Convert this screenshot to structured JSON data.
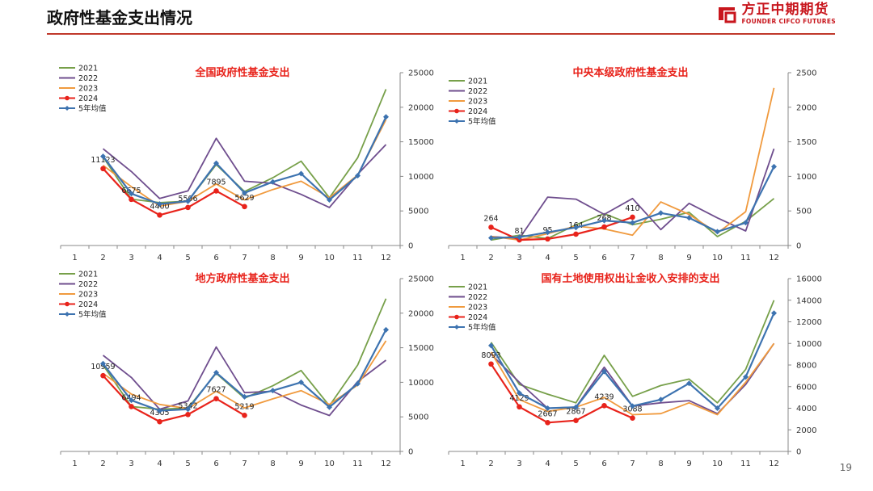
{
  "header": {
    "title": "政府性基金支出情况",
    "brand_cn": "方正中期期货",
    "brand_en": "FOUNDER CIFCO FUTURES",
    "brand_color": "#c8161d"
  },
  "page_number": "19",
  "series_colors": {
    "2021": "#77a04a",
    "2022": "#6f4e8e",
    "2023": "#f09a3e",
    "2024": "#e8231b",
    "5年均值": "#3d73b0"
  },
  "chart_data": [
    {
      "type": "line",
      "title": "全国政府性基金支出",
      "categories": [
        "1",
        "2",
        "3",
        "4",
        "5",
        "6",
        "7",
        "8",
        "9",
        "10",
        "11",
        "12"
      ],
      "ylim": [
        0,
        25000
      ],
      "yticks": [
        "0",
        "5000",
        "10000",
        "15000",
        "20000",
        "25000"
      ],
      "legend_position": "top-left",
      "grid": false,
      "series": [
        {
          "name": "2021",
          "values": [
            null,
            12800,
            6700,
            6200,
            6400,
            11700,
            7800,
            9800,
            12200,
            6900,
            12700,
            22600
          ]
        },
        {
          "name": "2022",
          "values": [
            null,
            14000,
            10700,
            6800,
            7900,
            15500,
            9300,
            9000,
            7400,
            5500,
            10300,
            14600
          ]
        },
        {
          "name": "2023",
          "values": [
            null,
            11600,
            8500,
            5700,
            6400,
            8900,
            6600,
            8100,
            9300,
            6900,
            10200,
            18200
          ]
        },
        {
          "name": "2024",
          "values": [
            null,
            11123,
            6675,
            4400,
            5506,
            7895,
            5629,
            null,
            null,
            null,
            null,
            null
          ],
          "labels": [
            "",
            "11123",
            "6675",
            "4400",
            "5506",
            "7895",
            "5629",
            "",
            "",
            "",
            "",
            ""
          ]
        },
        {
          "name": "5年均值",
          "values": [
            null,
            12900,
            7500,
            6000,
            6400,
            11900,
            7600,
            9200,
            10400,
            6600,
            10100,
            18600
          ]
        }
      ]
    },
    {
      "type": "line",
      "title": "中央本级政府性基金支出",
      "categories": [
        "1",
        "2",
        "3",
        "4",
        "5",
        "6",
        "7",
        "8",
        "9",
        "10",
        "11",
        "12"
      ],
      "ylim": [
        0,
        2500
      ],
      "yticks": [
        "0",
        "500",
        "1000",
        "1500",
        "2000",
        "2500"
      ],
      "legend_position": "top-left",
      "grid": false,
      "series": [
        {
          "name": "2021",
          "values": [
            null,
            80,
            150,
            100,
            300,
            460,
            300,
            380,
            480,
            130,
            350,
            680
          ]
        },
        {
          "name": "2022",
          "values": [
            null,
            130,
            100,
            700,
            670,
            450,
            680,
            230,
            610,
            400,
            210,
            1400
          ]
        },
        {
          "name": "2023",
          "values": [
            null,
            130,
            80,
            170,
            280,
            240,
            150,
            630,
            450,
            180,
            490,
            2280
          ]
        },
        {
          "name": "2024",
          "values": [
            null,
            264,
            81,
            95,
            164,
            268,
            410,
            null,
            null,
            null,
            null,
            null
          ],
          "labels": [
            "",
            "264",
            "81",
            "95",
            "164",
            "268",
            "410",
            "",
            "",
            "",
            "",
            ""
          ]
        },
        {
          "name": "5年均值",
          "values": [
            null,
            110,
            120,
            190,
            260,
            360,
            330,
            470,
            400,
            200,
            330,
            1140
          ]
        }
      ]
    },
    {
      "type": "line",
      "title": "地方政府性基金支出",
      "categories": [
        "1",
        "2",
        "3",
        "4",
        "5",
        "6",
        "7",
        "8",
        "9",
        "10",
        "11",
        "12"
      ],
      "ylim": [
        0,
        25000
      ],
      "yticks": [
        "0",
        "5000",
        "10000",
        "15000",
        "20000",
        "25000"
      ],
      "legend_position": "top-left",
      "grid": false,
      "series": [
        {
          "name": "2021",
          "values": [
            null,
            12500,
            6500,
            6100,
            6300,
            11300,
            7700,
            9500,
            11700,
            6600,
            12500,
            22100
          ]
        },
        {
          "name": "2022",
          "values": [
            null,
            13900,
            10700,
            6100,
            7300,
            15100,
            8500,
            8700,
            6700,
            5200,
            10100,
            13200
          ]
        },
        {
          "name": "2023",
          "values": [
            null,
            11300,
            8300,
            6800,
            6200,
            8700,
            6300,
            7600,
            8800,
            6800,
            9600,
            16000
          ]
        },
        {
          "name": "2024",
          "values": [
            null,
            10959,
            6494,
            4305,
            5342,
            7627,
            5219,
            null,
            null,
            null,
            null,
            null
          ],
          "labels": [
            "",
            "10959",
            "6494",
            "4305",
            "5342",
            "7627",
            "5219",
            "",
            "",
            "",
            "",
            ""
          ]
        },
        {
          "name": "5年均值",
          "values": [
            null,
            12700,
            7400,
            5900,
            6100,
            11400,
            7900,
            8800,
            10000,
            6400,
            9800,
            17600
          ]
        }
      ]
    },
    {
      "type": "line",
      "title": "国有土地使用权出让金收入安排的支出",
      "categories": [
        "1",
        "2",
        "3",
        "4",
        "5",
        "6",
        "7",
        "8",
        "9",
        "10",
        "11",
        "12"
      ],
      "ylim": [
        0,
        16000
      ],
      "yticks": [
        "0",
        "2000",
        "4000",
        "6000",
        "8000",
        "10000",
        "12000",
        "14000",
        "16000"
      ],
      "legend_position": "top-left",
      "grid": false,
      "series": [
        {
          "name": "2021",
          "values": [
            null,
            10100,
            6200,
            5300,
            4500,
            8900,
            5100,
            6100,
            6700,
            4500,
            7600,
            14000
          ]
        },
        {
          "name": "2022",
          "values": [
            null,
            9000,
            6400,
            4000,
            4100,
            7800,
            4200,
            4500,
            4700,
            3500,
            6200,
            10000
          ]
        },
        {
          "name": "2023",
          "values": [
            null,
            9200,
            4800,
            3700,
            4100,
            5000,
            3400,
            3500,
            4500,
            3400,
            6400,
            10000
          ]
        },
        {
          "name": "2024",
          "values": [
            null,
            8093,
            4129,
            2667,
            2867,
            4239,
            3088,
            null,
            null,
            null,
            null,
            null
          ],
          "labels": [
            "",
            "8093",
            "4129",
            "2667",
            "2867",
            "4239",
            "3088",
            "",
            "",
            "",
            "",
            ""
          ]
        },
        {
          "name": "5年均值",
          "values": [
            null,
            9800,
            5400,
            4000,
            4100,
            7400,
            4200,
            4800,
            6300,
            4000,
            6900,
            12800
          ]
        }
      ]
    }
  ]
}
